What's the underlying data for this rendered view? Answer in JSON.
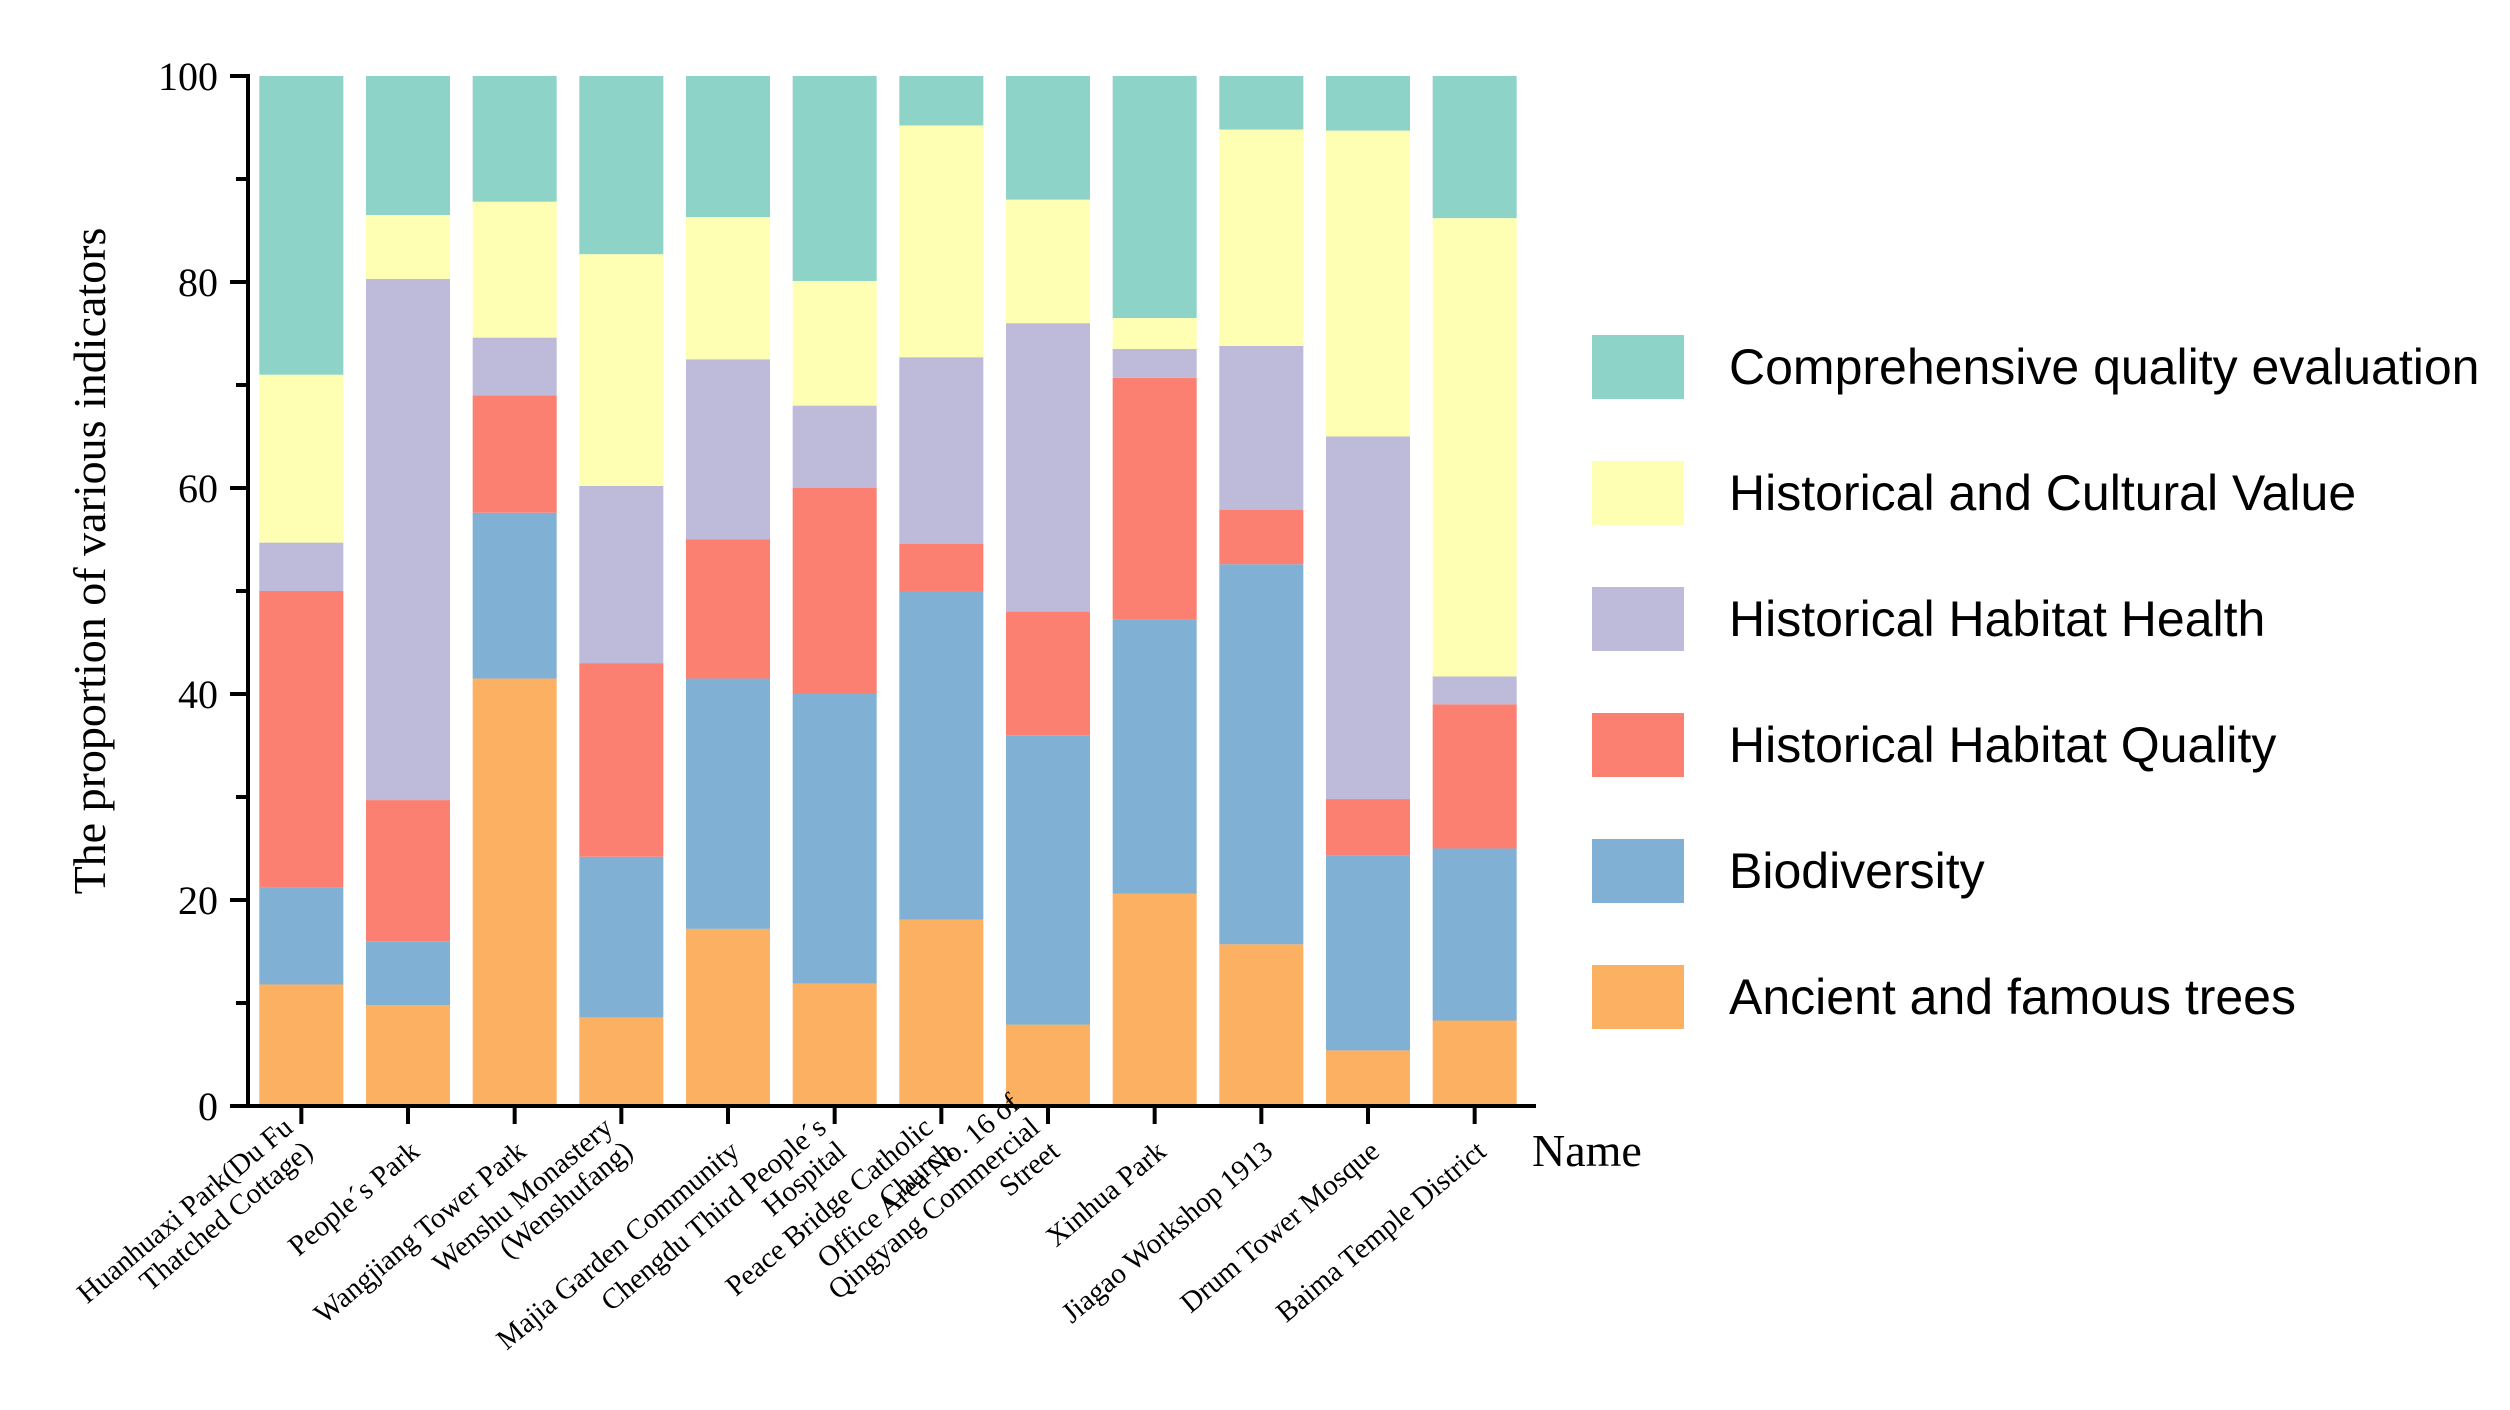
{
  "chart_data": {
    "type": "stacked-bar",
    "title": "",
    "xlabel": "Name",
    "ylabel": "The proportion of various indicators",
    "ylim": [
      0,
      100
    ],
    "yticks": [
      0,
      20,
      40,
      60,
      80,
      100
    ],
    "categories": [
      [
        "Huanhuaxi Park(Du Fu",
        "Thatched Cottage)"
      ],
      [
        "People´s Park"
      ],
      [
        "Wangjiang Tower Park"
      ],
      [
        "Wenshu Monastery",
        "(Wenshufang)"
      ],
      [
        "Majia Garden Community"
      ],
      [
        "Chengdu Third People´s",
        "Hospital"
      ],
      [
        "Peace Bridge Catholic",
        "Church"
      ],
      [
        "Office Area No. 16 of",
        "Qingyang Commercial",
        "Street"
      ],
      [
        "Xinhua Park"
      ],
      [
        "Jiagao Workshop 1913"
      ],
      [
        "Drum Tower Mosque"
      ],
      [
        "Baima Temple District"
      ]
    ],
    "series": [
      {
        "name": "Ancient and famous trees",
        "color": "#FBB062",
        "values": [
          11.8,
          9.8,
          41.5,
          8.6,
          17.2,
          11.9,
          18.1,
          7.9,
          20.6,
          15.7,
          5.4,
          8.3
        ]
      },
      {
        "name": "Biodiversity",
        "color": "#80B0D4",
        "values": [
          9.4,
          6.2,
          16.1,
          15.6,
          24.3,
          28.1,
          31.9,
          28.1,
          26.6,
          36.9,
          18.9,
          16.7
        ]
      },
      {
        "name": "Historical Habitat Quality",
        "color": "#FB8072",
        "values": [
          28.8,
          13.7,
          11.4,
          18.8,
          13.5,
          20.0,
          4.6,
          12.0,
          23.5,
          5.3,
          5.5,
          14.0
        ]
      },
      {
        "name": "Historical Habitat Health",
        "color": "#BEBADA",
        "values": [
          4.7,
          50.6,
          5.6,
          17.2,
          17.5,
          8.0,
          18.1,
          28.0,
          2.8,
          15.9,
          35.2,
          2.7
        ]
      },
      {
        "name": "Historical and Cultural Value",
        "color": "#FFFFB3",
        "values": [
          16.3,
          6.2,
          13.2,
          22.5,
          13.8,
          12.1,
          22.5,
          12.0,
          3.0,
          21.0,
          29.7,
          44.5
        ]
      },
      {
        "name": "Comprehensive quality evaluation",
        "color": "#8DD3C7",
        "values": [
          29.0,
          13.5,
          12.2,
          17.3,
          13.7,
          19.9,
          4.8,
          12.0,
          23.5,
          5.2,
          5.3,
          13.8
        ]
      }
    ],
    "legend": {
      "position": "right",
      "order": [
        "Comprehensive quality evaluation",
        "Historical and Cultural Value",
        "Historical Habitat Health",
        "Historical Habitat Quality",
        "Biodiversity",
        "Ancient and famous trees"
      ]
    }
  }
}
